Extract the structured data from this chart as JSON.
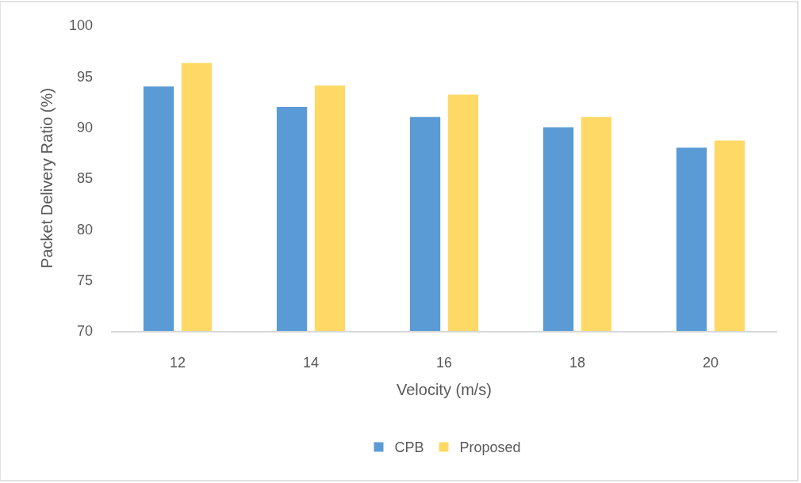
{
  "chart_data": {
    "type": "bar",
    "xlabel": "Velocity (m/s)",
    "ylabel": "Packet Delivery Ratio (%)",
    "categories": [
      "12",
      "14",
      "16",
      "18",
      "20"
    ],
    "series": [
      {
        "name": "CPB",
        "color": "#5b9bd5",
        "values": [
          94,
          92,
          91,
          90,
          88
        ]
      },
      {
        "name": "Proposed",
        "color": "#ffd966",
        "values": [
          96.3,
          94.1,
          93.2,
          91,
          88.7
        ]
      }
    ],
    "ylim": [
      70,
      100
    ],
    "yticks": [
      70,
      75,
      80,
      85,
      90,
      95,
      100
    ],
    "grid": false,
    "legend": "bottom"
  }
}
